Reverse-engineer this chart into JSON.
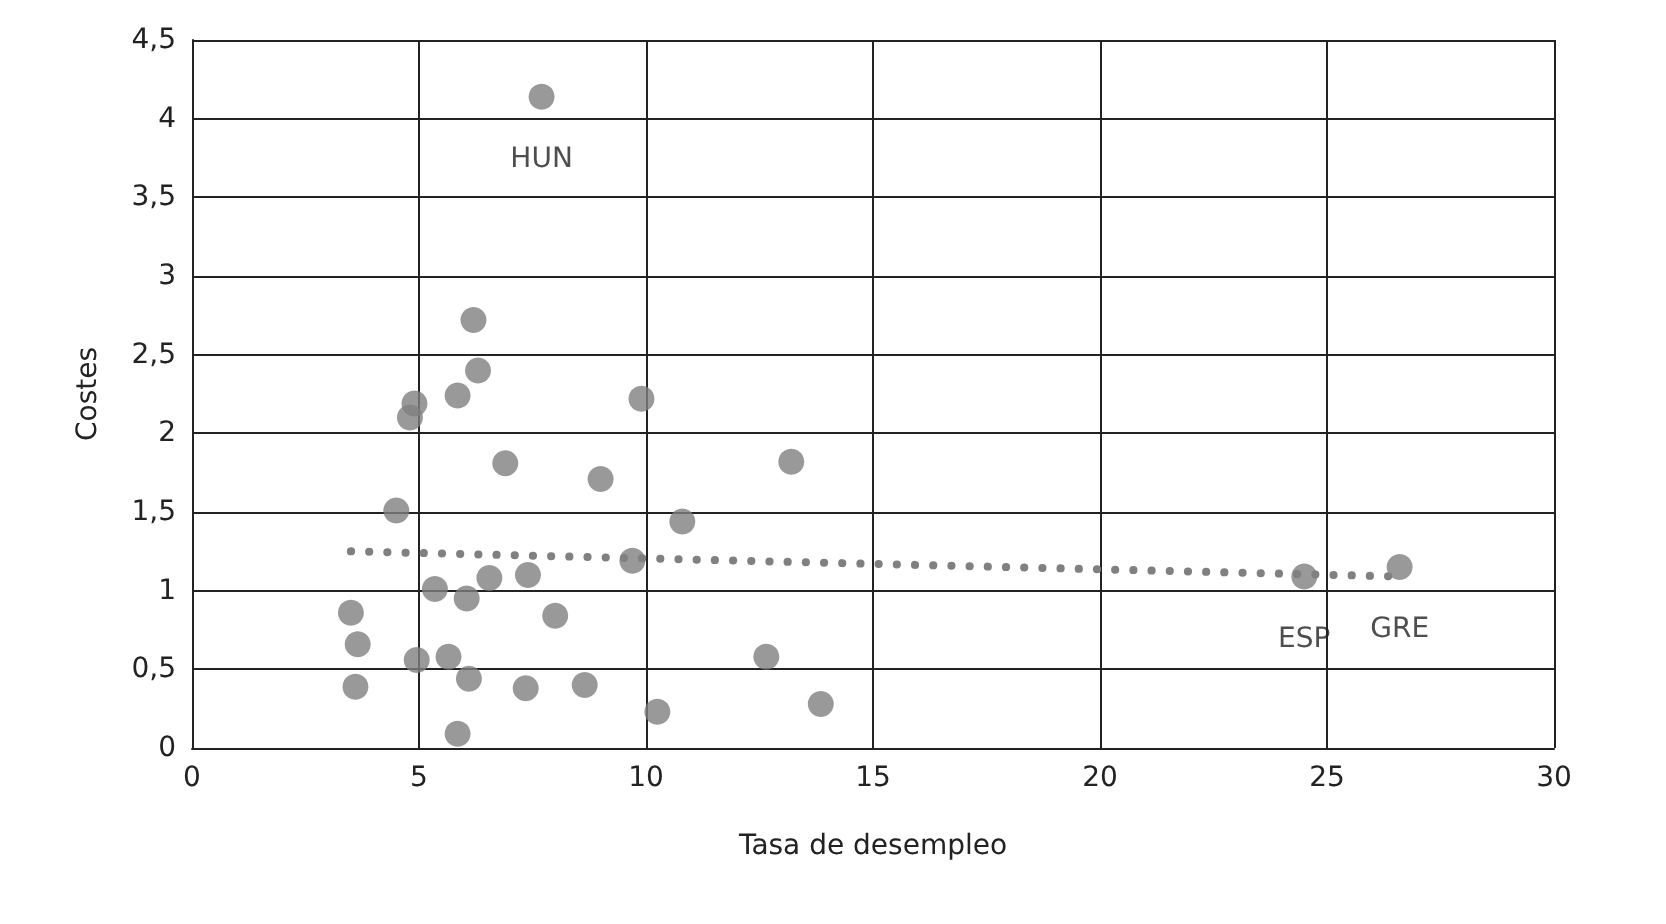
{
  "chart_data": {
    "type": "scatter",
    "xlabel": "Tasa de desempleo",
    "ylabel": "Costes",
    "xlim": [
      0,
      30
    ],
    "xticks": [
      0,
      5,
      10,
      15,
      20,
      25,
      30
    ],
    "ylim": [
      0,
      4.5
    ],
    "yticks": [
      0,
      {
        "value": 0.5,
        "label": "0,5"
      },
      1,
      {
        "value": 1.5,
        "label": "1,5"
      },
      2,
      {
        "value": 2.5,
        "label": "2,5"
      },
      3,
      {
        "value": 3.5,
        "label": "3,5"
      },
      4,
      {
        "value": 4.5,
        "label": "4,5"
      }
    ],
    "grid": true,
    "marker": "circle",
    "series": [
      {
        "color": "#808080",
        "x": [
          7.7,
          6.2,
          6.3,
          5.85,
          4.9,
          4.8,
          6.9,
          9.0,
          9.9,
          13.2,
          4.5,
          10.8,
          9.7,
          7.4,
          6.55,
          5.35,
          6.05,
          8.0,
          3.5,
          3.65,
          4.95,
          5.65,
          6.1,
          3.6,
          7.35,
          8.65,
          10.25,
          13.85,
          12.65,
          5.85,
          24.5,
          26.6
        ],
        "values": [
          4.14,
          2.72,
          2.4,
          2.24,
          2.19,
          2.1,
          1.81,
          1.71,
          2.22,
          1.82,
          1.51,
          1.44,
          1.19,
          1.1,
          1.08,
          1.01,
          0.95,
          0.84,
          0.86,
          0.66,
          0.56,
          0.58,
          0.44,
          0.39,
          0.38,
          0.4,
          0.23,
          0.28,
          0.58,
          0.09,
          1.09,
          1.15
        ]
      },
      {
        "type": "line",
        "color": "#808080",
        "line_style": "dotted",
        "marker": "none",
        "x": [
          3.5,
          26.6
        ],
        "values": [
          1.25,
          1.09
        ]
      }
    ],
    "annotations": [
      {
        "text": "HUN",
        "x": 7.7,
        "y": 4.14
      },
      {
        "text": "GRE",
        "x": 26.6,
        "y": 1.15
      },
      {
        "text": "ESP",
        "x": 24.5,
        "y": 1.09
      }
    ]
  }
}
